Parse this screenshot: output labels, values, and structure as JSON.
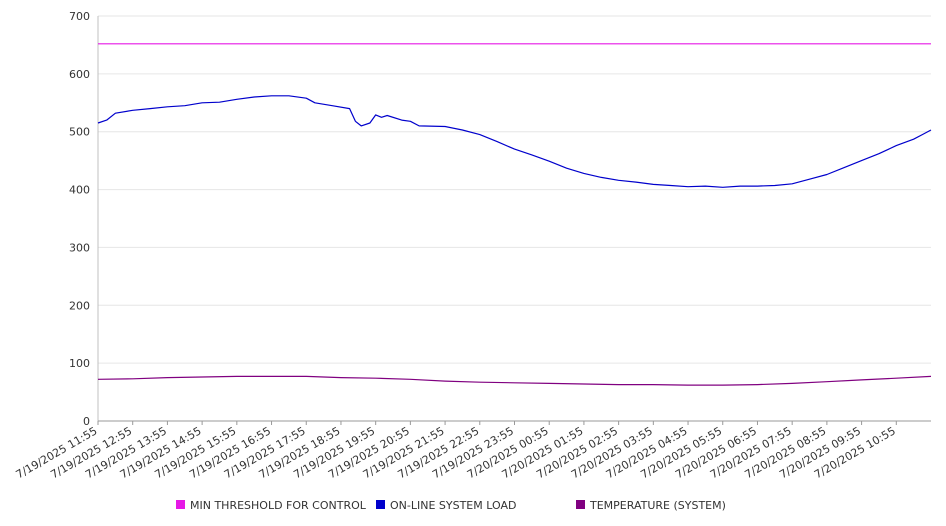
{
  "chart_data": {
    "type": "line",
    "title": "",
    "xlabel": "",
    "ylabel": "",
    "ylim": [
      0,
      700
    ],
    "yticks": [
      0,
      100,
      200,
      300,
      400,
      500,
      600,
      700
    ],
    "grid": true,
    "legend_position": "bottom",
    "x_tick_labels": [
      "7/19/2025 11:55",
      "7/19/2025 12:55",
      "7/19/2025 13:55",
      "7/19/2025 14:55",
      "7/19/2025 15:55",
      "7/19/2025 16:55",
      "7/19/2025 17:55",
      "7/19/2025 18:55",
      "7/19/2025 19:55",
      "7/19/2025 20:55",
      "7/19/2025 21:55",
      "7/19/2025 22:55",
      "7/19/2025 23:55",
      "7/20/2025 00:55",
      "7/20/2025 01:55",
      "7/20/2025 02:55",
      "7/20/2025 03:55",
      "7/20/2025 04:55",
      "7/20/2025 05:55",
      "7/20/2025 06:55",
      "7/20/2025 07:55",
      "7/20/2025 08:55",
      "7/20/2025 09:55",
      "7/20/2025 10:55"
    ],
    "x_range": [
      "7/19/2025 11:55",
      "7/20/2025 11:55"
    ],
    "series": [
      {
        "name": "MIN THRESHOLD FOR CONTROL",
        "color": "#e619e6",
        "points": [
          [
            "7/19/2025 11:55",
            652
          ],
          [
            "7/20/2025 11:55",
            652
          ]
        ]
      },
      {
        "name": "ON-LINE SYSTEM LOAD",
        "color": "#0000cc",
        "points": [
          [
            "7/19/2025 11:55",
            515
          ],
          [
            "7/19/2025 12:10",
            520
          ],
          [
            "7/19/2025 12:25",
            532
          ],
          [
            "7/19/2025 12:55",
            537
          ],
          [
            "7/19/2025 13:25",
            540
          ],
          [
            "7/19/2025 13:55",
            543
          ],
          [
            "7/19/2025 14:25",
            545
          ],
          [
            "7/19/2025 14:55",
            550
          ],
          [
            "7/19/2025 15:25",
            551
          ],
          [
            "7/19/2025 15:55",
            556
          ],
          [
            "7/19/2025 16:25",
            560
          ],
          [
            "7/19/2025 16:55",
            562
          ],
          [
            "7/19/2025 17:25",
            562
          ],
          [
            "7/19/2025 17:55",
            558
          ],
          [
            "7/19/2025 18:10",
            550
          ],
          [
            "7/19/2025 18:40",
            545
          ],
          [
            "7/19/2025 19:10",
            540
          ],
          [
            "7/19/2025 19:20",
            518
          ],
          [
            "7/19/2025 19:30",
            510
          ],
          [
            "7/19/2025 19:45",
            515
          ],
          [
            "7/19/2025 19:55",
            529
          ],
          [
            "7/19/2025 20:05",
            525
          ],
          [
            "7/19/2025 20:15",
            528
          ],
          [
            "7/19/2025 20:40",
            520
          ],
          [
            "7/19/2025 20:55",
            518
          ],
          [
            "7/19/2025 21:10",
            510
          ],
          [
            "7/19/2025 21:55",
            509
          ],
          [
            "7/19/2025 22:25",
            503
          ],
          [
            "7/19/2025 22:55",
            495
          ],
          [
            "7/19/2025 23:25",
            483
          ],
          [
            "7/19/2025 23:55",
            470
          ],
          [
            "7/20/2025 00:25",
            460
          ],
          [
            "7/20/2025 00:55",
            449
          ],
          [
            "7/20/2025 01:25",
            437
          ],
          [
            "7/20/2025 01:55",
            428
          ],
          [
            "7/20/2025 02:25",
            421
          ],
          [
            "7/20/2025 02:55",
            416
          ],
          [
            "7/20/2025 03:25",
            413
          ],
          [
            "7/20/2025 03:55",
            409
          ],
          [
            "7/20/2025 04:25",
            407
          ],
          [
            "7/20/2025 04:55",
            405
          ],
          [
            "7/20/2025 05:25",
            406
          ],
          [
            "7/20/2025 05:55",
            404
          ],
          [
            "7/20/2025 06:25",
            406
          ],
          [
            "7/20/2025 06:55",
            406
          ],
          [
            "7/20/2025 07:25",
            407
          ],
          [
            "7/20/2025 07:55",
            410
          ],
          [
            "7/20/2025 08:25",
            418
          ],
          [
            "7/20/2025 08:55",
            426
          ],
          [
            "7/20/2025 09:25",
            438
          ],
          [
            "7/20/2025 09:55",
            450
          ],
          [
            "7/20/2025 10:25",
            462
          ],
          [
            "7/20/2025 10:55",
            476
          ],
          [
            "7/20/2025 11:25",
            487
          ],
          [
            "7/20/2025 11:40",
            495
          ],
          [
            "7/20/2025 11:55",
            503
          ]
        ]
      },
      {
        "name": "TEMPERATURE (SYSTEM)",
        "color": "#800080",
        "points": [
          [
            "7/19/2025 11:55",
            72
          ],
          [
            "7/19/2025 12:55",
            73
          ],
          [
            "7/19/2025 13:55",
            75
          ],
          [
            "7/19/2025 14:55",
            76
          ],
          [
            "7/19/2025 15:55",
            77
          ],
          [
            "7/19/2025 16:55",
            77
          ],
          [
            "7/19/2025 17:55",
            77
          ],
          [
            "7/19/2025 18:55",
            75
          ],
          [
            "7/19/2025 19:55",
            74
          ],
          [
            "7/19/2025 20:55",
            72
          ],
          [
            "7/19/2025 21:55",
            69
          ],
          [
            "7/19/2025 22:55",
            67
          ],
          [
            "7/19/2025 23:55",
            66
          ],
          [
            "7/20/2025 00:55",
            65
          ],
          [
            "7/20/2025 01:55",
            64
          ],
          [
            "7/20/2025 02:55",
            63
          ],
          [
            "7/20/2025 03:55",
            63
          ],
          [
            "7/20/2025 04:55",
            62
          ],
          [
            "7/20/2025 05:55",
            62
          ],
          [
            "7/20/2025 06:55",
            63
          ],
          [
            "7/20/2025 07:55",
            65
          ],
          [
            "7/20/2025 08:55",
            68
          ],
          [
            "7/20/2025 09:55",
            71
          ],
          [
            "7/20/2025 10:55",
            74
          ],
          [
            "7/20/2025 11:55",
            77
          ]
        ]
      }
    ]
  }
}
